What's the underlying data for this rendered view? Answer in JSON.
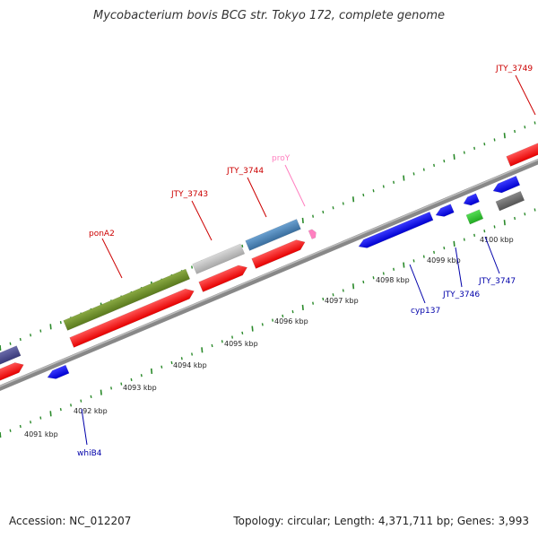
{
  "title": "Mycobacterium bovis BCG str. Tokyo 172, complete genome",
  "footer": {
    "accession": "Accession: NC_012207",
    "summary": "Topology: circular; Length: 4,371,711 bp; Genes: 3,993"
  },
  "colors": {
    "forward_cds": "#ff1a1a",
    "reverse_cds": "#1a1aff",
    "forward_label": "#cc0000",
    "reverse_label": "#0000aa",
    "rna_label": "#ff80c0",
    "tick": "#2a8a2a",
    "backbone": "#8a8a8a"
  },
  "scale_labels": [
    "4091 kbp",
    "4092 kbp",
    "4093 kbp",
    "4094 kbp",
    "4095 kbp",
    "4096 kbp",
    "4097 kbp",
    "4098 kbp",
    "4099 kbp",
    "4100 kbp"
  ],
  "gene_labels": {
    "forward": [
      "JTY_3749",
      "JTY_3744",
      "JTY_3743",
      "ponA2"
    ],
    "rna": "proY",
    "reverse": [
      "cyp137",
      "JTY_3746",
      "JTY_3747",
      "whiB4"
    ]
  }
}
